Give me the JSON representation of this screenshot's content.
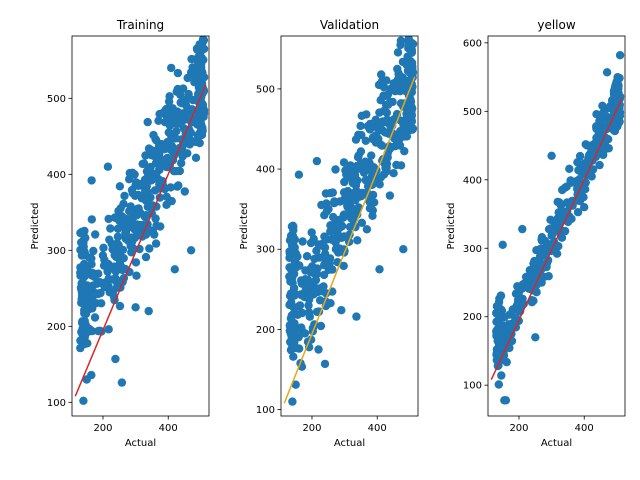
{
  "chart_data": [
    {
      "type": "scatter",
      "title": "Training",
      "xlabel": "Actual",
      "ylabel": "Predicted",
      "xlim": [
        105,
        525
      ],
      "ylim": [
        82,
        582
      ],
      "xticks": [
        200,
        400
      ],
      "yticks": [
        100,
        200,
        300,
        400,
        500
      ],
      "marker_color": "#1f77b4",
      "fit_line": {
        "color": "#d62728",
        "x": [
          115,
          515
        ],
        "y": [
          108,
          518
        ]
      },
      "cloud": {
        "x_range": [
          130,
          510
        ],
        "slope": 0.82,
        "intercept": 100,
        "spread": 55,
        "n": 420,
        "seed": 11
      },
      "outliers": [
        {
          "x": 140,
          "y": 102
        },
        {
          "x": 150,
          "y": 130
        },
        {
          "x": 165,
          "y": 392
        },
        {
          "x": 215,
          "y": 410
        },
        {
          "x": 258,
          "y": 126
        },
        {
          "x": 238,
          "y": 157
        },
        {
          "x": 409,
          "y": 540
        },
        {
          "x": 470,
          "y": 300
        },
        {
          "x": 420,
          "y": 275
        },
        {
          "x": 510,
          "y": 565
        },
        {
          "x": 300,
          "y": 225
        },
        {
          "x": 340,
          "y": 220
        }
      ]
    },
    {
      "type": "scatter",
      "title": "Validation",
      "xlabel": "Actual",
      "ylabel": "Predicted",
      "xlim": [
        105,
        525
      ],
      "ylim": [
        92,
        566
      ],
      "xticks": [
        200,
        400
      ],
      "yticks": [
        100,
        200,
        300,
        400,
        500
      ],
      "marker_color": "#1f77b4",
      "fit_line": {
        "color": "#e6a817",
        "x": [
          115,
          515
        ],
        "y": [
          108,
          515
        ]
      },
      "cloud": {
        "x_range": [
          130,
          510
        ],
        "slope": 0.82,
        "intercept": 98,
        "spread": 55,
        "n": 380,
        "seed": 23
      },
      "outliers": [
        {
          "x": 140,
          "y": 110
        },
        {
          "x": 150,
          "y": 131
        },
        {
          "x": 160,
          "y": 393
        },
        {
          "x": 215,
          "y": 410
        },
        {
          "x": 240,
          "y": 157
        },
        {
          "x": 336,
          "y": 216
        },
        {
          "x": 290,
          "y": 224
        },
        {
          "x": 407,
          "y": 275
        },
        {
          "x": 480,
          "y": 300
        },
        {
          "x": 510,
          "y": 556
        },
        {
          "x": 220,
          "y": 175
        }
      ]
    },
    {
      "type": "scatter",
      "title": "yellow",
      "xlabel": "Actual",
      "ylabel": "Predicted",
      "xlim": [
        105,
        525
      ],
      "ylim": [
        55,
        610
      ],
      "xticks": [
        200,
        400
      ],
      "yticks": [
        100,
        200,
        300,
        400,
        500,
        600
      ],
      "marker_color": "#1f77b4",
      "fit_line": {
        "color": "#d62728",
        "x": [
          115,
          515
        ],
        "y": [
          108,
          518
        ]
      },
      "cloud": {
        "x_range": [
          130,
          510
        ],
        "slope": 1.0,
        "intercept": 10,
        "spread": 28,
        "n": 300,
        "seed": 37
      },
      "outliers": [
        {
          "x": 155,
          "y": 78
        },
        {
          "x": 160,
          "y": 78
        },
        {
          "x": 138,
          "y": 101
        },
        {
          "x": 150,
          "y": 305
        },
        {
          "x": 210,
          "y": 328
        },
        {
          "x": 250,
          "y": 170
        },
        {
          "x": 300,
          "y": 435
        },
        {
          "x": 470,
          "y": 557
        },
        {
          "x": 510,
          "y": 582
        },
        {
          "x": 400,
          "y": 360
        }
      ]
    }
  ]
}
